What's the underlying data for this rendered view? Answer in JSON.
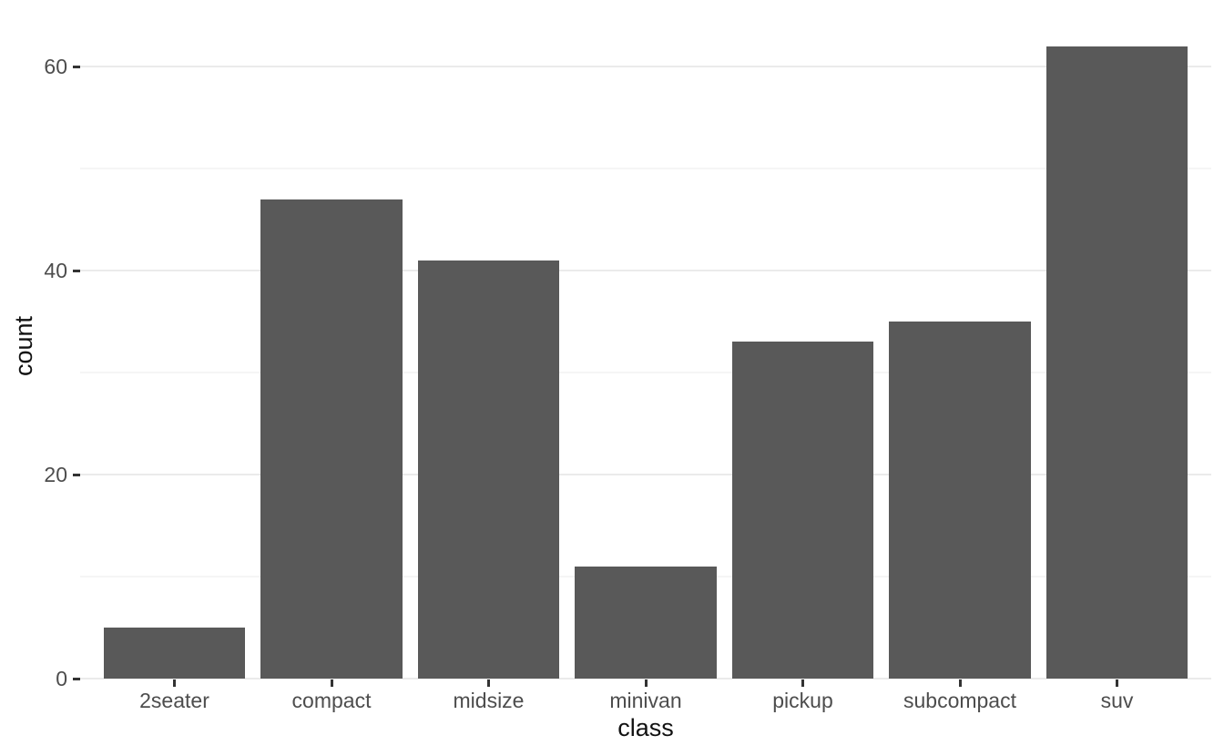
{
  "chart_data": {
    "type": "bar",
    "categories": [
      "2seater",
      "compact",
      "midsize",
      "minivan",
      "pickup",
      "subcompact",
      "suv"
    ],
    "values": [
      5,
      47,
      41,
      11,
      33,
      35,
      62
    ],
    "title": "",
    "xlabel": "class",
    "ylabel": "count",
    "y_major_ticks": [
      0,
      20,
      40,
      60
    ],
    "y_tick_labels": [
      "0",
      "20",
      "40",
      "60"
    ],
    "y_minor_gridlines": [
      10,
      30,
      50
    ],
    "ylim": [
      0,
      65.1
    ],
    "grid": "horizontal major+minor, no vertical",
    "legend_position": "none",
    "colors": {
      "bar_fill": "#595959",
      "axis_text": "#4D4D4D",
      "axis_title": "#111111",
      "tick_mark": "#333333",
      "grid_major": "#EBEBEB",
      "grid_minor": "#F5F5F5",
      "background": "#FFFFFF"
    }
  }
}
